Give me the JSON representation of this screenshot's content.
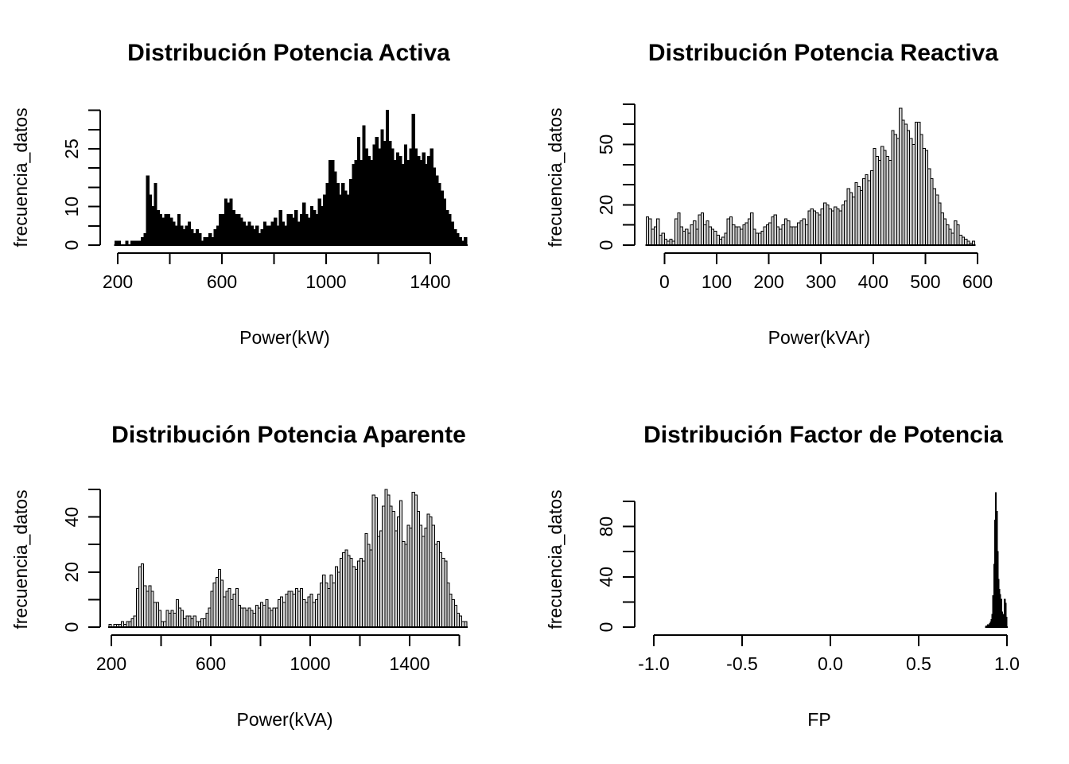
{
  "chart_data": [
    {
      "type": "bar",
      "title": "Distribución Potencia Activa",
      "xlabel": "Power(kW)",
      "ylabel": "frecuencia_datos",
      "bar_fill": "#000000",
      "bar_stroke": "#000000",
      "grid": false,
      "legend": "none",
      "xlim": [
        190,
        1540
      ],
      "ylim": [
        0,
        35
      ],
      "bin_start": 190,
      "bin_width": 10,
      "values": [
        1,
        1,
        0,
        0,
        1,
        0,
        1,
        1,
        1,
        1,
        2,
        3,
        18,
        13,
        10,
        16,
        9,
        8,
        7,
        8,
        8,
        7,
        6,
        5,
        8,
        5,
        4,
        5,
        6,
        4,
        3,
        4,
        3,
        1,
        2,
        2,
        3,
        2,
        4,
        5,
        8,
        8,
        12,
        11,
        12,
        9,
        8,
        8,
        7,
        6,
        5,
        6,
        5,
        4,
        5,
        3,
        4,
        6,
        5,
        5,
        6,
        7,
        5,
        9,
        6,
        5,
        8,
        8,
        7,
        9,
        6,
        8,
        11,
        8,
        7,
        10,
        9,
        8,
        12,
        10,
        13,
        16,
        22,
        22,
        19,
        16,
        13,
        16,
        14,
        13,
        17,
        21,
        22,
        28,
        22,
        31,
        25,
        23,
        22,
        26,
        28,
        25,
        30,
        27,
        35,
        27,
        25,
        22,
        24,
        23,
        21,
        26,
        22,
        25,
        34,
        25,
        23,
        22,
        24,
        21,
        23,
        25,
        20,
        18,
        16,
        14,
        12,
        9,
        8,
        6,
        4,
        3,
        2,
        1,
        2
      ],
      "x_ticks": {
        "values": [
          200,
          400,
          600,
          800,
          1000,
          1200,
          1400
        ],
        "labels": [
          "200",
          "",
          "600",
          "",
          "1000",
          "",
          "1400"
        ]
      },
      "y_ticks": {
        "values": [
          0,
          5,
          10,
          15,
          20,
          25,
          30,
          35
        ],
        "labels": [
          "0",
          "",
          "10",
          "",
          "",
          "25",
          "",
          ""
        ]
      }
    },
    {
      "type": "bar",
      "title": "Distribución Potencia Reactiva",
      "xlabel": "Power(kVAr)",
      "ylabel": "frecuencia_datos",
      "bar_fill": "#d3d3d3",
      "bar_stroke": "#000000",
      "grid": false,
      "legend": "none",
      "xlim": [
        -35,
        595
      ],
      "ylim": [
        0,
        70
      ],
      "bin_start": -35,
      "bin_width": 5,
      "values": [
        14,
        13,
        8,
        9,
        13,
        5,
        6,
        3,
        2,
        3,
        2,
        13,
        16,
        9,
        7,
        8,
        6,
        10,
        12,
        8,
        15,
        16,
        10,
        12,
        9,
        8,
        7,
        5,
        3,
        4,
        6,
        13,
        14,
        10,
        9,
        9,
        8,
        10,
        11,
        13,
        16,
        8,
        6,
        6,
        7,
        9,
        10,
        11,
        14,
        15,
        9,
        8,
        10,
        13,
        12,
        9,
        9,
        9,
        11,
        12,
        13,
        10,
        17,
        18,
        17,
        16,
        15,
        18,
        21,
        20,
        18,
        17,
        19,
        18,
        17,
        20,
        22,
        28,
        26,
        24,
        31,
        29,
        27,
        33,
        35,
        32,
        37,
        48,
        44,
        42,
        49,
        47,
        44,
        42,
        57,
        55,
        53,
        68,
        62,
        60,
        57,
        53,
        50,
        61,
        61,
        55,
        48,
        47,
        38,
        33,
        28,
        25,
        21,
        16,
        13,
        10,
        8,
        6,
        12,
        10,
        5,
        4,
        3,
        2,
        1,
        2
      ],
      "x_ticks": {
        "values": [
          0,
          100,
          200,
          300,
          400,
          500,
          600
        ],
        "labels": [
          "0",
          "100",
          "200",
          "300",
          "400",
          "500",
          "600"
        ]
      },
      "y_ticks": {
        "values": [
          0,
          10,
          20,
          30,
          40,
          50,
          60,
          70
        ],
        "labels": [
          "0",
          "",
          "20",
          "",
          "",
          "50",
          "",
          ""
        ]
      }
    },
    {
      "type": "bar",
      "title": "Distribución Potencia Aparente",
      "xlabel": "Power(kVA)",
      "ylabel": "frecuencia_datos",
      "bar_fill": "#d3d3d3",
      "bar_stroke": "#000000",
      "grid": false,
      "legend": "none",
      "xlim": [
        190,
        1630
      ],
      "ylim": [
        0,
        50
      ],
      "bin_start": 190,
      "bin_width": 10,
      "values": [
        1,
        0,
        1,
        1,
        1,
        2,
        1,
        2,
        2,
        3,
        4,
        14,
        22,
        23,
        15,
        13,
        15,
        13,
        9,
        9,
        6,
        2,
        2,
        6,
        5,
        6,
        5,
        10,
        7,
        6,
        3,
        4,
        4,
        3,
        4,
        2,
        2,
        3,
        3,
        5,
        7,
        13,
        16,
        18,
        21,
        17,
        11,
        13,
        14,
        10,
        12,
        14,
        8,
        7,
        7,
        6,
        7,
        6,
        5,
        8,
        7,
        9,
        8,
        10,
        7,
        6,
        7,
        7,
        10,
        11,
        9,
        12,
        13,
        13,
        12,
        14,
        13,
        14,
        10,
        9,
        11,
        12,
        9,
        10,
        12,
        16,
        19,
        16,
        14,
        19,
        16,
        22,
        20,
        25,
        27,
        28,
        26,
        25,
        22,
        21,
        24,
        25,
        24,
        34,
        30,
        28,
        48,
        47,
        33,
        35,
        44,
        50,
        48,
        44,
        42,
        35,
        40,
        46,
        31,
        30,
        37,
        36,
        49,
        48,
        42,
        37,
        33,
        36,
        41,
        40,
        37,
        30,
        31,
        27,
        25,
        24,
        16,
        12,
        10,
        8,
        5,
        4,
        2,
        2
      ],
      "x_ticks": {
        "values": [
          200,
          400,
          600,
          800,
          1000,
          1200,
          1400,
          1600
        ],
        "labels": [
          "200",
          "",
          "600",
          "",
          "1000",
          "",
          "1400",
          ""
        ]
      },
      "y_ticks": {
        "values": [
          0,
          10,
          20,
          30,
          40,
          50
        ],
        "labels": [
          "0",
          "",
          "20",
          "",
          "40",
          ""
        ]
      }
    },
    {
      "type": "bar",
      "title": "Distribución Factor de Potencia",
      "xlabel": "FP",
      "ylabel": "frecuencia_datos",
      "bar_fill": "#000000",
      "bar_stroke": "#000000",
      "grid": false,
      "legend": "none",
      "xlim": [
        -1.08,
        1.08
      ],
      "ylim": [
        0,
        107
      ],
      "bin_start": 0.88,
      "bin_width": 0.005,
      "values": [
        1,
        1,
        2,
        2,
        3,
        4,
        6,
        10,
        25,
        50,
        85,
        107,
        92,
        60,
        38,
        30,
        26,
        22,
        12,
        8,
        10,
        22,
        19,
        8
      ],
      "x_ticks": {
        "values": [
          -1.0,
          -0.5,
          0.0,
          0.5,
          1.0
        ],
        "labels": [
          "-1.0",
          "-0.5",
          "0.0",
          "0.5",
          "1.0"
        ]
      },
      "y_ticks": {
        "values": [
          0,
          20,
          40,
          60,
          80,
          100
        ],
        "labels": [
          "0",
          "",
          "40",
          "",
          "80",
          ""
        ]
      }
    }
  ]
}
